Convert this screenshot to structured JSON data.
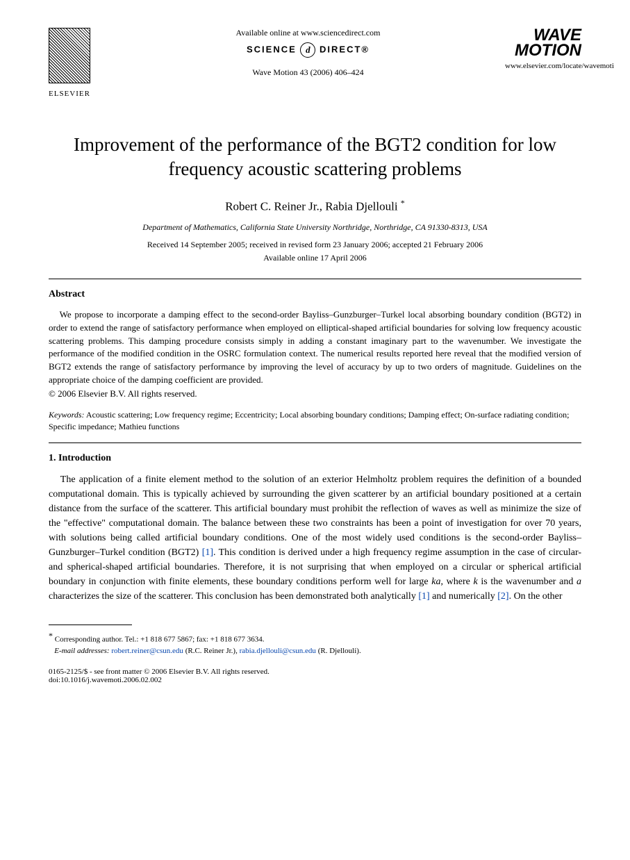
{
  "header": {
    "available_online": "Available online at www.sciencedirect.com",
    "sd_logo_left": "SCIENCE",
    "sd_logo_mid": "d",
    "sd_logo_right": "DIRECT®",
    "citation": "Wave Motion 43 (2006) 406–424",
    "elsevier": "ELSEVIER",
    "journal_logo_line1": "WAVE",
    "journal_logo_line2": "MOTION",
    "journal_url": "www.elsevier.com/locate/wavemoti"
  },
  "title": "Improvement of the performance of the BGT2 condition for low frequency acoustic scattering problems",
  "authors": "Robert C. Reiner Jr., Rabia Djellouli",
  "corr_mark": "*",
  "affiliation": "Department of Mathematics, California State University Northridge, Northridge, CA 91330-8313, USA",
  "dates": "Received 14 September 2005; received in revised form 23 January 2006; accepted 21 February 2006",
  "available_date": "Available online 17 April 2006",
  "abstract": {
    "heading": "Abstract",
    "body": "We propose to incorporate a damping effect to the second-order Bayliss–Gunzburger–Turkel local absorbing boundary condition (BGT2) in order to extend the range of satisfactory performance when employed on elliptical-shaped artificial boundaries for solving low frequency acoustic scattering problems. This damping procedure consists simply in adding a constant imaginary part to the wavenumber. We investigate the performance of the modified condition in the OSRC formulation context. The numerical results reported here reveal that the modified version of BGT2 extends the range of satisfactory performance by improving the level of accuracy by up to two orders of magnitude. Guidelines on the appropriate choice of the damping coefficient are provided.",
    "copyright": "© 2006 Elsevier B.V. All rights reserved."
  },
  "keywords": {
    "label": "Keywords:",
    "text": " Acoustic scattering; Low frequency regime; Eccentricity; Local absorbing boundary conditions; Damping effect; On-surface radiating condition; Specific impedance; Mathieu functions"
  },
  "intro": {
    "heading": "1. Introduction",
    "p1_a": "The application of a finite element method to the solution of an exterior Helmholtz problem requires the definition of a bounded computational domain. This is typically achieved by surrounding the given scatterer by an artificial boundary positioned at a certain distance from the surface of the scatterer. This artificial boundary must prohibit the reflection of waves as well as minimize the size of the \"effective\" computational domain. The balance between these two constraints has been a point of investigation for over 70 years, with solutions being called artificial boundary conditions. One of the most widely used conditions is the second-order Bayliss–Gunzburger–Turkel condition (BGT2) ",
    "ref1": "[1]",
    "p1_b": ". This condition is derived under a high frequency regime assumption in the case of circular- and spherical-shaped artificial boundaries. Therefore, it is not surprising that when employed on a circular or spherical artificial boundary in conjunction with finite elements, these boundary conditions perform well for large ",
    "ka": "ka",
    "p1_c": ", where ",
    "k": "k",
    "p1_d": " is the wavenumber and ",
    "a": "a",
    "p1_e": " characterizes the size of the scatterer. This conclusion has been demonstrated both analytically ",
    "ref1b": "[1]",
    "p1_f": " and numerically ",
    "ref2": "[2]",
    "p1_g": ". On the other"
  },
  "footnote": {
    "corr": "Corresponding author. Tel.: +1 818 677 5867; fax: +1 818 677 3634.",
    "email_label": "E-mail addresses:",
    "email1": "robert.reiner@csun.edu",
    "email1_name": " (R.C. Reiner Jr.), ",
    "email2": "rabia.djellouli@csun.edu",
    "email2_name": " (R. Djellouli)."
  },
  "front_matter": "0165-2125/$ - see front matter © 2006 Elsevier B.V. All rights reserved.",
  "doi": "doi:10.1016/j.wavemoti.2006.02.002",
  "colors": {
    "text": "#000000",
    "link": "#0645ad",
    "background": "#ffffff"
  }
}
